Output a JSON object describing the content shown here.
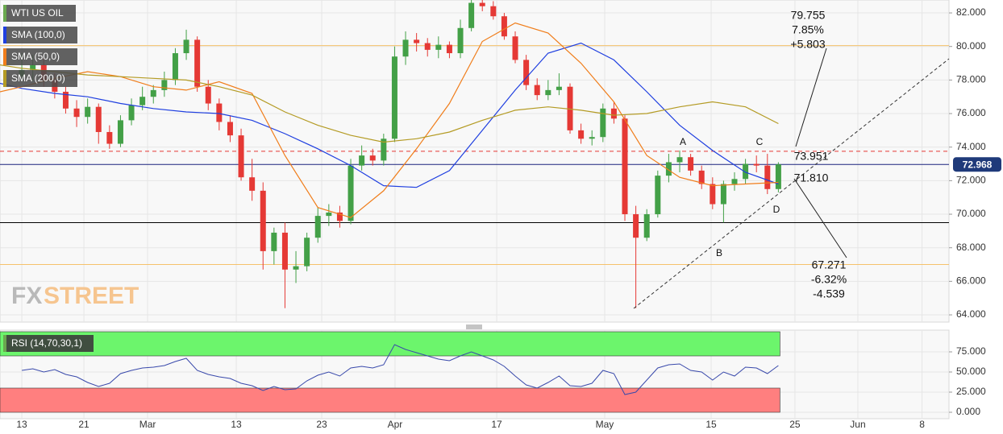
{
  "chart_data": [
    {
      "type": "candlestick",
      "title": "WTI US OIL",
      "x": [
        0,
        1,
        2,
        3,
        4,
        5,
        6,
        7,
        8,
        9,
        10,
        11,
        12,
        13,
        14,
        15,
        16,
        17,
        18,
        19,
        20,
        21,
        22,
        23,
        24,
        25,
        26,
        27,
        28,
        29,
        30,
        31,
        32,
        33,
        34,
        35,
        36,
        37,
        38,
        39,
        40,
        41,
        42,
        43,
        44,
        45,
        46,
        47,
        48,
        49,
        50,
        51,
        52,
        53,
        54,
        55,
        56,
        57,
        58,
        59,
        60,
        61,
        62,
        63,
        64,
        65,
        66,
        67,
        68,
        69
      ],
      "open": [
        78.2,
        78.6,
        78.9,
        78.0,
        77.3,
        76.3,
        75.8,
        76.4,
        74.9,
        74.2,
        75.6,
        76.5,
        77.0,
        77.4,
        78.0,
        79.6,
        80.4,
        77.6,
        76.6,
        75.5,
        74.7,
        72.2,
        71.4,
        67.8,
        68.9,
        66.7,
        66.9,
        68.6,
        69.9,
        70.1,
        69.6,
        72.9,
        73.5,
        73.2,
        74.5,
        79.4,
        80.4,
        80.2,
        79.8,
        80.1,
        79.6,
        81.1,
        82.6,
        82.4,
        81.8,
        80.6,
        79.2,
        77.7,
        77.1,
        77.4,
        77.6,
        75.0,
        74.5,
        74.6,
        76.3,
        75.7,
        70.0,
        68.6,
        70.0,
        72.3,
        73.1,
        73.4,
        72.6,
        71.8,
        70.6,
        71.8,
        72.1,
        73.0,
        72.9,
        71.5
      ],
      "high": [
        79.6,
        79.5,
        79.3,
        78.4,
        77.6,
        76.8,
        76.9,
        76.6,
        75.3,
        75.9,
        76.9,
        77.6,
        77.7,
        78.5,
        79.9,
        81.0,
        80.6,
        78.0,
        76.9,
        75.9,
        75.1,
        73.3,
        71.9,
        69.2,
        69.5,
        67.8,
        68.9,
        70.4,
        70.6,
        70.5,
        73.3,
        74.1,
        73.9,
        74.8,
        80.0,
        80.9,
        80.8,
        80.5,
        80.6,
        80.3,
        81.6,
        83.4,
        83.0,
        82.7,
        82.0,
        80.9,
        79.5,
        78.1,
        78.0,
        78.4,
        77.8,
        75.4,
        75.0,
        76.6,
        76.7,
        75.9,
        70.5,
        70.3,
        72.6,
        73.6,
        73.8,
        73.6,
        72.9,
        72.2,
        72.0,
        72.5,
        73.3,
        73.5,
        73.6,
        73.1
      ],
      "low": [
        77.9,
        77.9,
        77.6,
        76.9,
        76.0,
        75.2,
        75.4,
        74.2,
        73.9,
        74.0,
        75.3,
        76.2,
        76.6,
        77.0,
        77.7,
        79.2,
        77.3,
        76.2,
        75.0,
        74.3,
        72.0,
        70.8,
        66.7,
        67.0,
        64.4,
        65.9,
        66.6,
        68.3,
        69.3,
        69.2,
        69.4,
        72.6,
        72.9,
        72.9,
        74.3,
        78.9,
        79.7,
        79.4,
        79.3,
        79.3,
        79.3,
        80.9,
        82.1,
        81.6,
        80.4,
        79.0,
        77.4,
        76.8,
        76.8,
        77.1,
        74.8,
        74.2,
        74.1,
        74.3,
        75.4,
        69.6,
        64.4,
        68.4,
        69.8,
        71.9,
        72.5,
        72.3,
        71.5,
        70.3,
        69.5,
        71.4,
        71.8,
        72.5,
        71.2,
        71.3
      ],
      "close": [
        78.6,
        78.9,
        78.0,
        77.3,
        76.3,
        75.8,
        76.4,
        74.9,
        74.2,
        75.6,
        76.5,
        77.0,
        77.4,
        78.0,
        79.6,
        80.4,
        77.6,
        76.6,
        75.5,
        74.7,
        72.2,
        71.4,
        67.8,
        68.9,
        66.7,
        66.9,
        68.6,
        69.9,
        70.1,
        69.6,
        72.9,
        73.5,
        73.2,
        74.5,
        79.4,
        80.4,
        80.2,
        79.8,
        80.1,
        79.6,
        81.1,
        82.6,
        82.4,
        81.8,
        80.6,
        79.2,
        77.7,
        77.1,
        77.4,
        77.6,
        75.0,
        74.5,
        74.6,
        76.3,
        75.7,
        70.0,
        68.6,
        70.0,
        72.3,
        73.1,
        73.4,
        72.6,
        71.8,
        70.6,
        71.8,
        72.1,
        73.0,
        72.9,
        71.5,
        72.968
      ],
      "up_color": "#43a047",
      "down_color": "#e53935",
      "series": [
        {
          "name": "SMA (100,0)",
          "color": "#1f3fe0",
          "x": [
            -2,
            0,
            3,
            6,
            9,
            12,
            15,
            18,
            21,
            24,
            27,
            30,
            33,
            36,
            39,
            42,
            45,
            48,
            51,
            54,
            57,
            60,
            63,
            66,
            69
          ],
          "values": [
            77.8,
            77.5,
            77.2,
            77.0,
            76.6,
            76.3,
            76.1,
            76.0,
            75.6,
            74.8,
            73.9,
            72.9,
            71.7,
            71.6,
            72.6,
            75.0,
            77.4,
            79.6,
            80.2,
            79.2,
            77.3,
            75.3,
            73.8,
            72.5,
            71.8
          ]
        },
        {
          "name": "SMA (50,0)",
          "color": "#f07d1a",
          "x": [
            -2,
            0,
            3,
            6,
            9,
            12,
            15,
            18,
            21,
            24,
            27,
            30,
            33,
            36,
            39,
            42,
            45,
            48,
            51,
            54,
            57,
            60,
            63,
            66,
            69
          ],
          "values": [
            77.3,
            77.6,
            78.1,
            78.5,
            78.2,
            77.6,
            77.4,
            77.9,
            77.2,
            73.5,
            70.4,
            69.8,
            71.4,
            73.9,
            76.6,
            80.3,
            81.4,
            80.8,
            79.0,
            76.7,
            73.5,
            72.2,
            71.7,
            71.8,
            71.9
          ]
        },
        {
          "name": "SMA (200,0)",
          "color": "#b49b24",
          "x": [
            -2,
            0,
            3,
            6,
            9,
            12,
            15,
            18,
            21,
            24,
            27,
            30,
            33,
            36,
            39,
            42,
            45,
            48,
            51,
            54,
            57,
            60,
            63,
            66,
            69
          ],
          "values": [
            78.9,
            78.7,
            78.5,
            78.3,
            78.2,
            78.1,
            78.0,
            77.6,
            77.1,
            76.1,
            75.3,
            74.7,
            74.3,
            74.5,
            74.9,
            75.6,
            76.2,
            76.4,
            76.2,
            75.9,
            76.0,
            76.4,
            76.7,
            76.4,
            75.4
          ]
        }
      ],
      "levels": [
        {
          "value": 80.05,
          "color": "#f5c26b",
          "style": "solid"
        },
        {
          "value": 73.75,
          "color": "#e53935",
          "style": "dashed"
        },
        {
          "value": 72.968,
          "color": "#1a237e",
          "style": "solid"
        },
        {
          "value": 69.5,
          "color": "#000000",
          "style": "solid"
        },
        {
          "value": 67.0,
          "color": "#f5c26b",
          "style": "solid"
        }
      ],
      "last_price": 72.968,
      "last_price_color": "#1f3a7a",
      "annotations": [
        "79.755",
        "7.85%",
        "+5.803",
        "73.951",
        "71.810",
        "67.271",
        "-6.32%",
        "-4.539",
        "A",
        "B",
        "C",
        "D"
      ],
      "watermark": [
        "FX",
        "STREET"
      ],
      "xlim": [
        -1.99,
        84.56
      ],
      "xticks": [
        {
          "value": 0,
          "label": "13"
        },
        {
          "value": 5.66,
          "label": "21"
        },
        {
          "value": 11.47,
          "label": "Mar"
        },
        {
          "value": 19.56,
          "label": "13"
        },
        {
          "value": 27.35,
          "label": "23"
        },
        {
          "value": 34.04,
          "label": "Apr"
        },
        {
          "value": 43.31,
          "label": "17"
        },
        {
          "value": 53.16,
          "label": "May"
        },
        {
          "value": 62.87,
          "label": "15"
        },
        {
          "value": 70.51,
          "label": "25"
        },
        {
          "value": 76.25,
          "label": "Jun"
        },
        {
          "value": 82.1,
          "label": "8"
        }
      ],
      "ylim": [
        63.57,
        82.77
      ],
      "yticks": [
        {
          "value": 64,
          "label": "64.000"
        },
        {
          "value": 66,
          "label": "66.000"
        },
        {
          "value": 68,
          "label": "68.000"
        },
        {
          "value": 70,
          "label": "70.000"
        },
        {
          "value": 72,
          "label": "72.000"
        },
        {
          "value": 74,
          "label": "74.000"
        },
        {
          "value": 76,
          "label": "76.000"
        },
        {
          "value": 78,
          "label": "78.000"
        },
        {
          "value": 80,
          "label": "80.000"
        },
        {
          "value": 82,
          "label": "82.000"
        }
      ],
      "grid": true
    },
    {
      "type": "line",
      "title": "RSI (14,70,30,1)",
      "series": [
        {
          "color": "#3949ab",
          "values": [
            52,
            54,
            50,
            53,
            47,
            44,
            37,
            32,
            36,
            48,
            52,
            55,
            56,
            58,
            63,
            67,
            52,
            47,
            44,
            42,
            36,
            33,
            27,
            32,
            28,
            29,
            39,
            46,
            50,
            45,
            55,
            57,
            55,
            59,
            84,
            78,
            74,
            70,
            66,
            64,
            70,
            75,
            70,
            65,
            57,
            45,
            34,
            30,
            37,
            45,
            33,
            32,
            36,
            52,
            48,
            22,
            25,
            40,
            55,
            59,
            60,
            52,
            50,
            40,
            50,
            45,
            56,
            55,
            48,
            58
          ]
        }
      ],
      "bands": [
        {
          "from": 70,
          "to": 100,
          "color": "#6cf56c"
        },
        {
          "from": 0,
          "to": 30,
          "color": "#ff7f7f"
        }
      ],
      "ylim": [
        -8,
        102
      ],
      "yticks": [
        {
          "value": 0,
          "label": "0.000"
        },
        {
          "value": 25,
          "label": "25.000"
        },
        {
          "value": 50,
          "label": "50.000"
        },
        {
          "value": 75,
          "label": "75.000"
        }
      ],
      "grid": true
    }
  ]
}
